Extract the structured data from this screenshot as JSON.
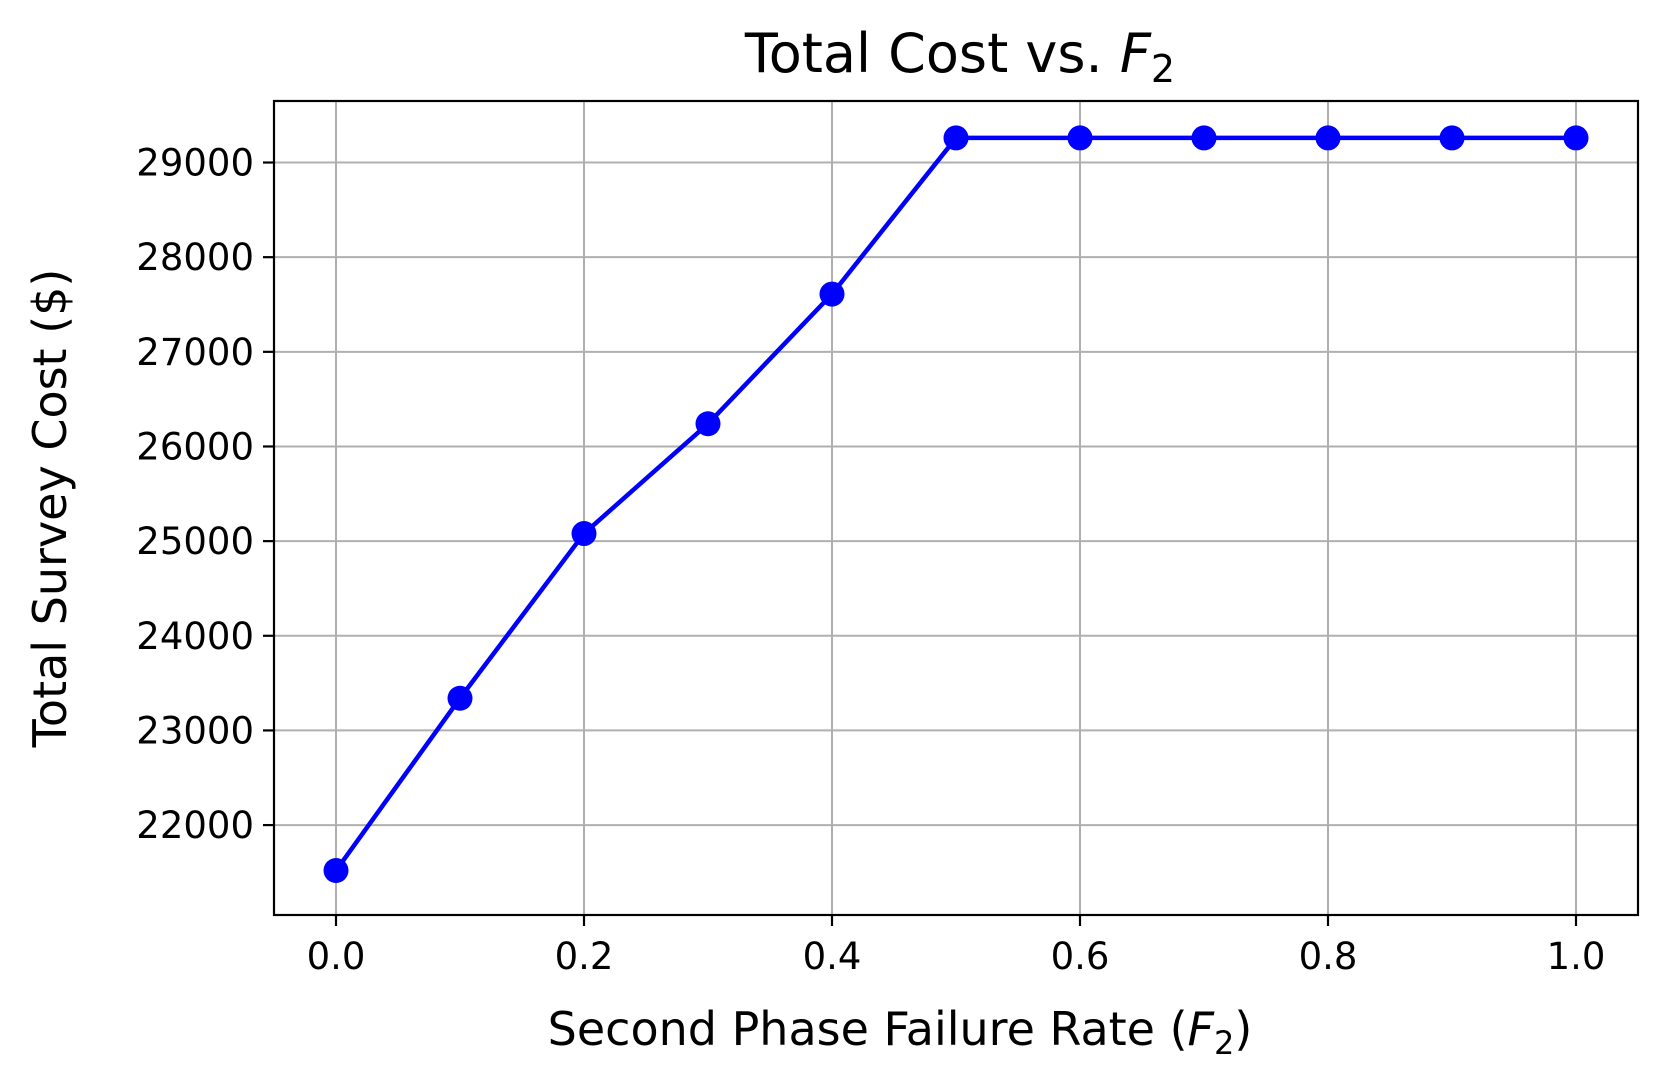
{
  "chart_data": {
    "type": "line",
    "title": "Total Cost vs. F2",
    "title_text": "Total Cost vs. ",
    "title_var": "F",
    "title_sub": "2",
    "xlabel": "Second Phase Failure Rate (F2)",
    "xlabel_text": "Second Phase Failure Rate (",
    "xlabel_var": "F",
    "xlabel_sub": "2",
    "xlabel_close": ")",
    "ylabel": "Total Survey Cost ($)",
    "xlim": [
      -0.05,
      1.05
    ],
    "ylim": [
      21050,
      29650
    ],
    "grid": true,
    "x_ticks": [
      0.0,
      0.2,
      0.4,
      0.6,
      0.8,
      1.0
    ],
    "x_tick_labels": [
      "0.0",
      "0.2",
      "0.4",
      "0.6",
      "0.8",
      "1.0"
    ],
    "y_ticks": [
      22000,
      23000,
      24000,
      25000,
      26000,
      27000,
      28000,
      29000
    ],
    "y_tick_labels": [
      "22000",
      "23000",
      "24000",
      "25000",
      "26000",
      "27000",
      "28000",
      "29000"
    ],
    "series": [
      {
        "color": "#0000ff",
        "marker": "circle",
        "x": [
          0.0,
          0.1,
          0.2,
          0.3,
          0.4,
          0.5,
          0.6,
          0.7,
          0.8,
          0.9,
          1.0
        ],
        "y": [
          21520,
          23340,
          25080,
          26240,
          27610,
          29260,
          29260,
          29260,
          29260,
          29260,
          29260
        ]
      }
    ]
  }
}
